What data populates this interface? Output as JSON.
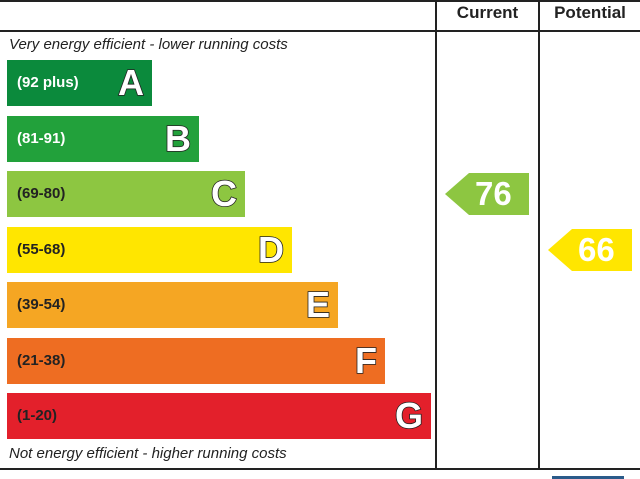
{
  "header": {
    "current_label": "Current",
    "potential_label": "Potential"
  },
  "notes": {
    "top": "Very energy efficient - lower running costs",
    "bottom": "Not energy efficient - higher running costs"
  },
  "chart_data": {
    "type": "bar",
    "categories": [
      "A",
      "B",
      "C",
      "D",
      "E",
      "F",
      "G"
    ],
    "ranges": [
      "(92 plus)",
      "(81-91)",
      "(69-80)",
      "(55-68)",
      "(39-54)",
      "(21-38)",
      "(1-20)"
    ],
    "colors": [
      "#0b8a3c",
      "#22a13b",
      "#8dc641",
      "#ffe600",
      "#f5a623",
      "#ee6d22",
      "#e3202b"
    ],
    "range_text_colors": [
      "#ffffff",
      "#ffffff",
      "#222222",
      "#222222",
      "#222222",
      "#222222",
      "#222222"
    ],
    "current": {
      "value": 76,
      "band": "C",
      "color": "#8dc641"
    },
    "potential": {
      "value": 66,
      "band": "D",
      "color": "#ffe600"
    }
  }
}
